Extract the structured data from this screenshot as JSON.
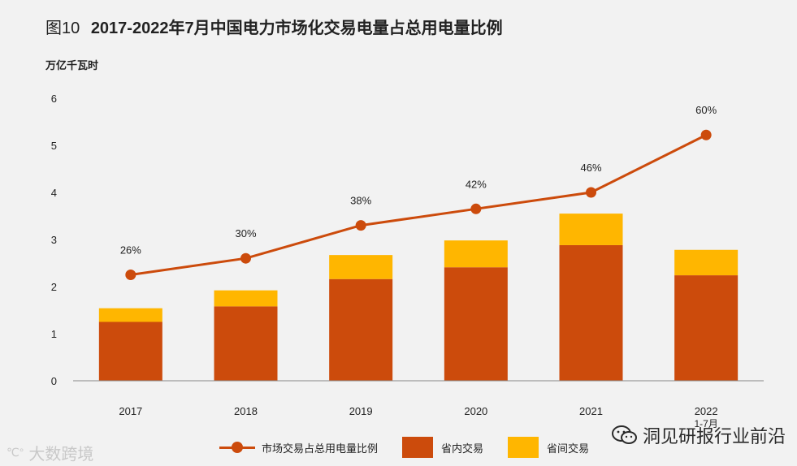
{
  "header": {
    "figure_label": "图10",
    "title": "2017-2022年7月中国电力市场化交易电量占总用电量比例"
  },
  "chart_data": {
    "type": "bar",
    "stacked": true,
    "title": "2017-2022年7月中国电力市场化交易电量占总用电量比例",
    "ylabel": "万亿千瓦时",
    "ylim": [
      0,
      6
    ],
    "yticks": [
      0,
      1,
      2,
      3,
      4,
      5,
      6
    ],
    "categories": [
      "2017",
      "2018",
      "2019",
      "2020",
      "2021",
      "2022"
    ],
    "category_sublabels": [
      "",
      "",
      "",
      "",
      "",
      "1-7月"
    ],
    "series": [
      {
        "name": "省内交易",
        "kind": "bar",
        "color": "#cc4b0c",
        "values": [
          1.25,
          1.58,
          2.16,
          2.41,
          2.88,
          2.24
        ]
      },
      {
        "name": "省间交易",
        "kind": "bar",
        "color": "#ffb600",
        "values": [
          0.29,
          0.34,
          0.51,
          0.57,
          0.67,
          0.54
        ]
      },
      {
        "name": "市场交易占总用电量比例",
        "kind": "line",
        "color": "#cc4b0c",
        "values": [
          2.25,
          2.6,
          3.3,
          3.65,
          4.0,
          5.22
        ],
        "labels": [
          "26%",
          "30%",
          "38%",
          "42%",
          "46%",
          "60%"
        ]
      }
    ],
    "legend_position": "bottom-center"
  },
  "legend": {
    "line_label": "市场交易占总用电量比例",
    "series1_label": "省内交易",
    "series2_label": "省间交易",
    "series1_color": "#cc4b0c",
    "series2_color": "#ffb600"
  },
  "watermark": {
    "left_logo": "℃°",
    "left_text": "大数跨境",
    "right_text": "洞见研报行业前沿"
  }
}
